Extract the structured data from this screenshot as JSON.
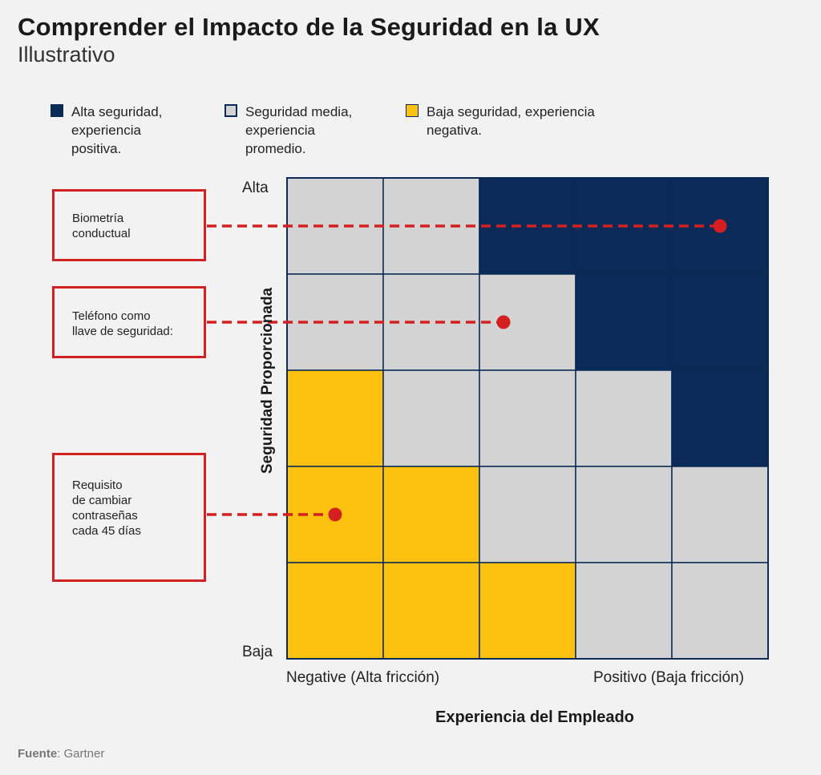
{
  "header": {
    "title": "Comprender el Impacto de la Seguridad en la UX",
    "subtitle": "Illustrativo"
  },
  "legend": [
    {
      "lines": [
        "Alta seguridad,",
        "experiencia",
        "positiva."
      ],
      "color": "#0b2a57"
    },
    {
      "lines": [
        "Seguridad media,",
        "experiencia",
        "promedio."
      ],
      "color": "#d3d3d3"
    },
    {
      "lines": [
        "Baja seguridad, experiencia",
        "negativa."
      ],
      "color": "#fcc20f"
    }
  ],
  "colors": {
    "high": "#0b2a57",
    "medium": "#d3d3d3",
    "low": "#fcc20f",
    "accent": "#d42020"
  },
  "chart_data": {
    "type": "heatmap",
    "xlabel": "Experiencia del Empleado",
    "ylabel": "Seguridad Proporcionada",
    "x_tick_labels": [
      "Negative (Alta fricción)",
      "Positivo (Baja fricción)"
    ],
    "y_tick_labels": [
      "Alta",
      "Baja"
    ],
    "columns": 5,
    "rows": 5,
    "grid": [
      [
        "medium",
        "medium",
        "high",
        "high",
        "high"
      ],
      [
        "medium",
        "medium",
        "medium",
        "high",
        "high"
      ],
      [
        "low",
        "medium",
        "medium",
        "medium",
        "high"
      ],
      [
        "low",
        "low",
        "medium",
        "medium",
        "medium"
      ],
      [
        "low",
        "low",
        "low",
        "medium",
        "medium"
      ]
    ],
    "points": [
      {
        "label": "Biometría conductual",
        "x": 4.5,
        "y": 4.5
      },
      {
        "label": "Teléfono como llave de seguridad:",
        "x": 2.25,
        "y": 3.5
      },
      {
        "label": "Requisito de cambiar contraseñas cada 45 días",
        "x": 0.5,
        "y": 1.5
      }
    ],
    "xlim": [
      0,
      5
    ],
    "ylim": [
      0,
      5
    ]
  },
  "callouts": [
    {
      "lines": [
        "Biometría",
        "conductual"
      ]
    },
    {
      "lines": [
        "Teléfono como",
        "llave de seguridad:"
      ]
    },
    {
      "lines": [
        "Requisito",
        "de cambiar",
        "contraseñas",
        "cada 45 días"
      ]
    }
  ],
  "source": {
    "label": "Fuente",
    "text": ": Gartner"
  }
}
